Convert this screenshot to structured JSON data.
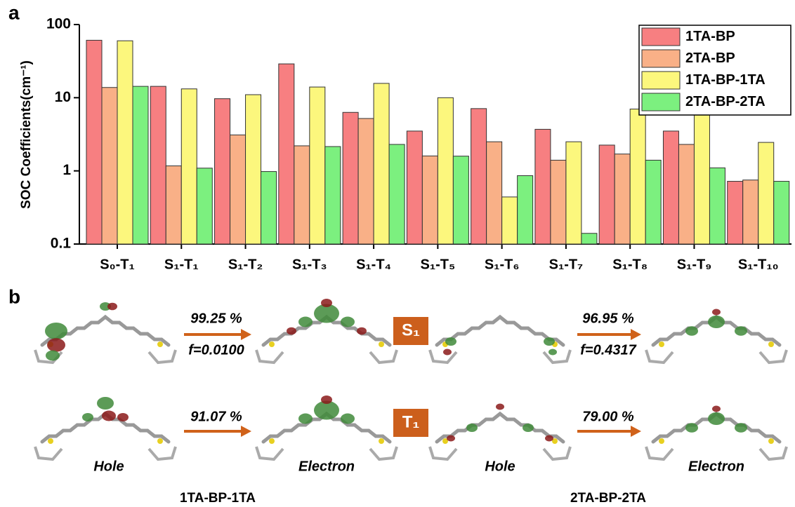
{
  "chart_data": {
    "type": "bar",
    "panel_label": "a",
    "y_label": "SOC Coefficients(cm⁻¹)",
    "categories": [
      "S₀-T₁",
      "S₁-T₁",
      "S₁-T₂",
      "S₁-T₃",
      "S₁-T₄",
      "S₁-T₅",
      "S₁-T₆",
      "S₁-T₇",
      "S₁-T₈",
      "S₁-T₉",
      "S₁-T₁₀"
    ],
    "series": [
      {
        "name": "1TA-BP",
        "color": "#f77f81",
        "values": [
          61,
          14.3,
          9.7,
          29,
          6.3,
          3.5,
          7.1,
          3.7,
          2.25,
          3.5,
          0.72
        ]
      },
      {
        "name": "2TA-BP",
        "color": "#f9b087",
        "values": [
          13.8,
          1.17,
          3.1,
          2.2,
          5.2,
          1.6,
          2.5,
          1.4,
          1.7,
          2.3,
          0.75
        ]
      },
      {
        "name": "1TA-BP-1TA",
        "color": "#fcf77d",
        "values": [
          60,
          13.2,
          11,
          14,
          15.7,
          10,
          0.44,
          2.5,
          7,
          8,
          2.45
        ]
      },
      {
        "name": "2TA-BP-2TA",
        "color": "#7cf07f",
        "values": [
          14.3,
          1.09,
          0.98,
          2.15,
          2.3,
          1.59,
          0.86,
          0.14,
          1.4,
          1.1,
          0.72
        ]
      }
    ],
    "ylim": [
      0.1,
      100
    ],
    "yticks": [
      0.1,
      1,
      10,
      100
    ],
    "yscale": "log",
    "legend": "top-right"
  },
  "panel_b": {
    "label": "b",
    "states": [
      "S₁",
      "T₁"
    ],
    "percents": [
      "99.25 %",
      "96.95 %",
      "91.07 %",
      "79.00 %"
    ],
    "oscillator_strengths": [
      "f=0.0100",
      "f=0.4317"
    ],
    "orbital_labels": [
      "Hole",
      "Electron",
      "Hole",
      "Electron"
    ],
    "molecules": [
      "1TA-BP-1TA",
      "2TA-BP-2TA"
    ]
  }
}
